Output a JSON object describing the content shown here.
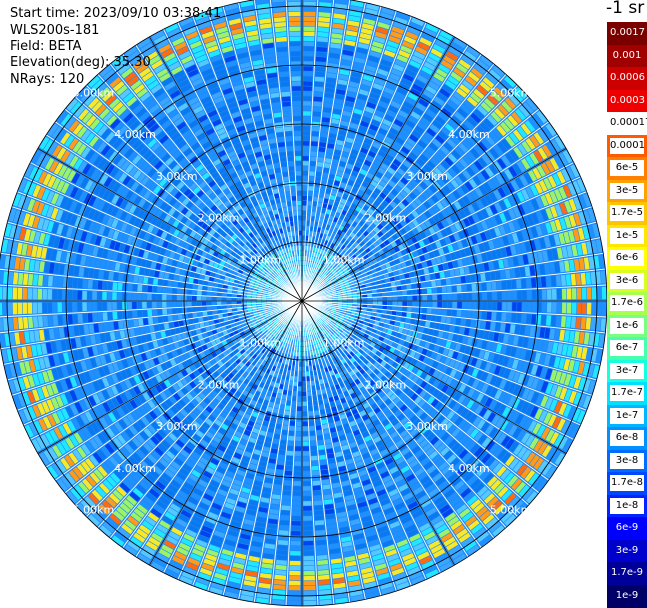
{
  "header": {
    "start_time": "Start time: 2023/09/10 03:38:41",
    "station": "WLS200s-181",
    "field": "Field: BETA",
    "elevation": "Elevation(deg): 35.30",
    "nrays": "NRays: 120"
  },
  "colorbar": {
    "unit": "-1 sr",
    "labels": [
      "0.0017",
      "0.001",
      "0.0006",
      "0.0003",
      "0.00017",
      "0.0001",
      "6e-5",
      "3e-5",
      "1.7e-5",
      "1e-5",
      "6e-6",
      "3e-6",
      "1.7e-6",
      "1e-6",
      "6e-7",
      "3e-7",
      "1.7e-7",
      "1e-7",
      "6e-8",
      "3e-8",
      "1.7e-8",
      "1e-8",
      "6e-9",
      "3e-9",
      "1.7e-9",
      "1e-9"
    ],
    "colors": [
      "#7a0000",
      "#a00000",
      "#cc0000",
      "#ee0000",
      "#ffffff",
      "#ff5a00",
      "#ff8000",
      "#ffa200",
      "#ffc400",
      "#ffe600",
      "#ffff00",
      "#d8ff20",
      "#a8ff50",
      "#78ff80",
      "#48ffb0",
      "#18ffe0",
      "#00e0ff",
      "#00b4ff",
      "#0090ff",
      "#006cff",
      "#0048ff",
      "#0024ff",
      "#0000ff",
      "#0000cc",
      "#000099",
      "#000066"
    ]
  },
  "chart_data": {
    "type": "heatmap",
    "projection": "polar (PPI scan)",
    "field": "BETA",
    "elevation_deg": 35.3,
    "n_rays": 120,
    "azimuth_spokes_deg": [
      0,
      30,
      60,
      90,
      120,
      150,
      180,
      210,
      240,
      270,
      300,
      330
    ],
    "range_rings_km": [
      1.0,
      2.0,
      3.0,
      4.0,
      5.0
    ],
    "ring_labels": [
      "1.00km",
      "2.00km",
      "3.00km",
      "4.00km",
      "5.00km"
    ],
    "max_range_km": 5.1,
    "color_scale": "log",
    "value_range": [
      1e-09,
      0.0017
    ],
    "dominant_value_approx": 6e-08,
    "near_center_value_approx": 3e-07,
    "outer_ring_band_value_approx": 1e-05
  }
}
